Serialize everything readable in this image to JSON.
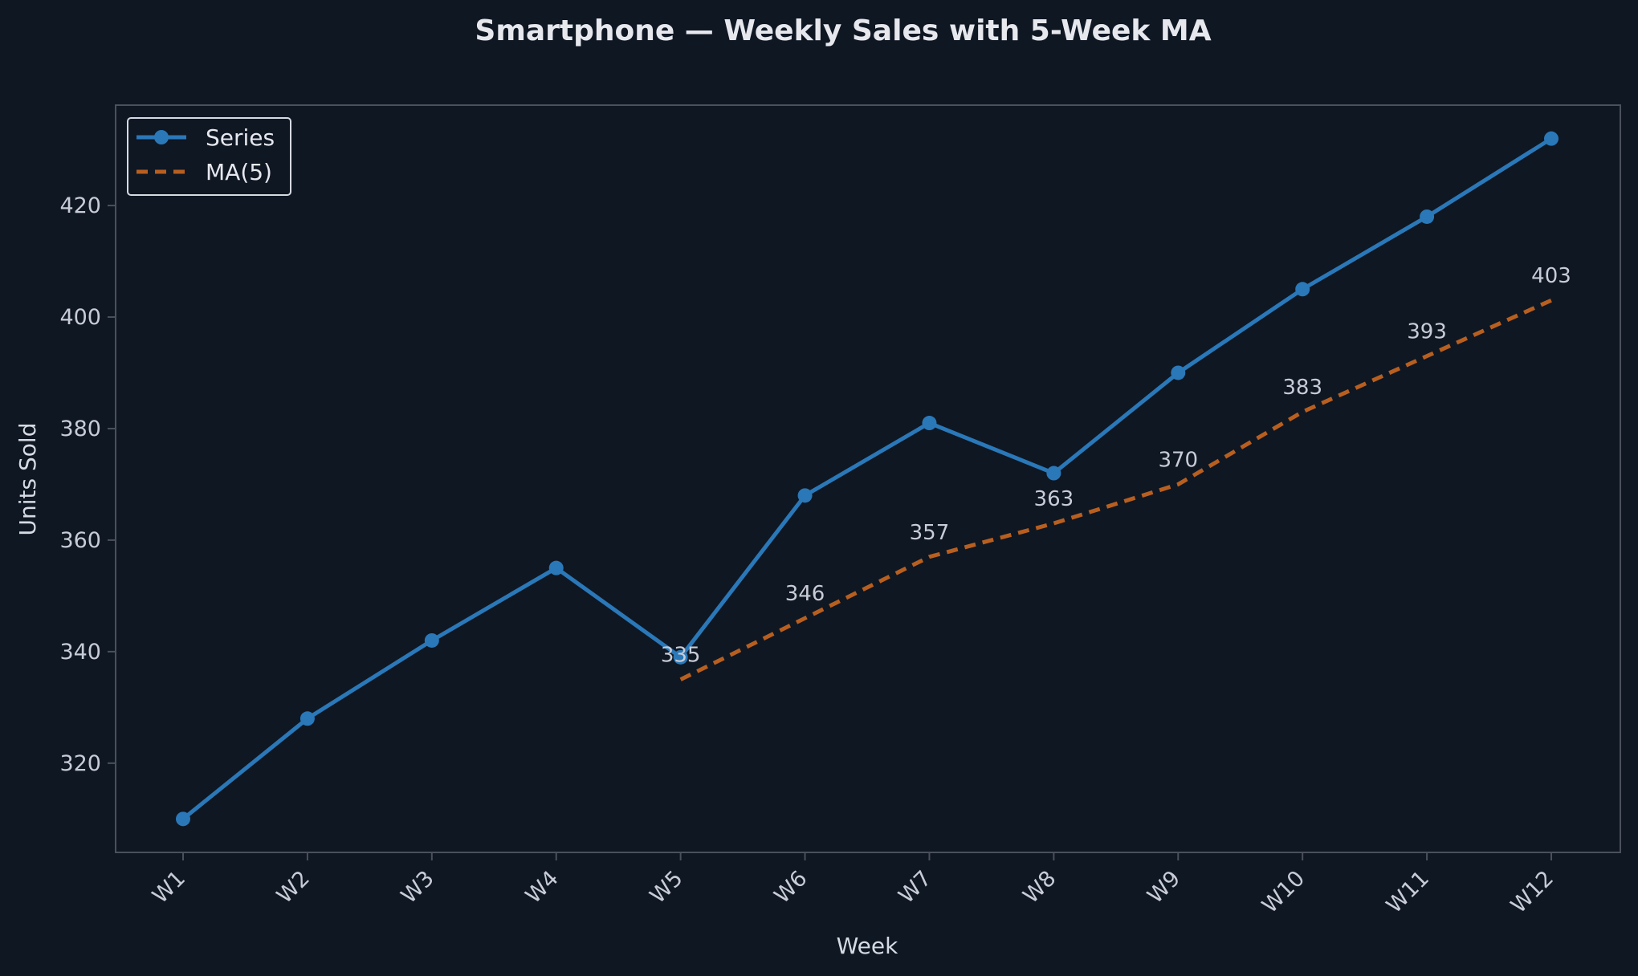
{
  "colors": {
    "background": "#0f1723",
    "axes_frame": "#4a505c",
    "text": "#c8ccd6",
    "series": "#2a78b8",
    "moving_average": "#b85f1f"
  },
  "chart_data": {
    "type": "line",
    "title": "Smartphone — Weekly Sales with 5-Week MA",
    "xlabel": "Week",
    "ylabel": "Units Sold",
    "categories": [
      "W1",
      "W2",
      "W3",
      "W4",
      "W5",
      "W6",
      "W7",
      "W8",
      "W9",
      "W10",
      "W11",
      "W12"
    ],
    "ylim": [
      304,
      438
    ],
    "yticks": [
      320,
      340,
      360,
      380,
      400,
      420
    ],
    "grid": false,
    "legend_position": "top-left",
    "series": [
      {
        "name": "Series",
        "style": "solid-with-markers",
        "values": [
          310,
          328,
          342,
          355,
          339,
          368,
          381,
          372,
          390,
          405,
          418,
          432
        ]
      },
      {
        "name": "MA(5)",
        "style": "dashed",
        "values": [
          null,
          null,
          null,
          null,
          335,
          346,
          357,
          363,
          370,
          383,
          393,
          403
        ],
        "data_labels": [
          null,
          null,
          null,
          null,
          "335",
          "346",
          "357",
          "363",
          "370",
          "383",
          "393",
          "403"
        ]
      }
    ]
  }
}
